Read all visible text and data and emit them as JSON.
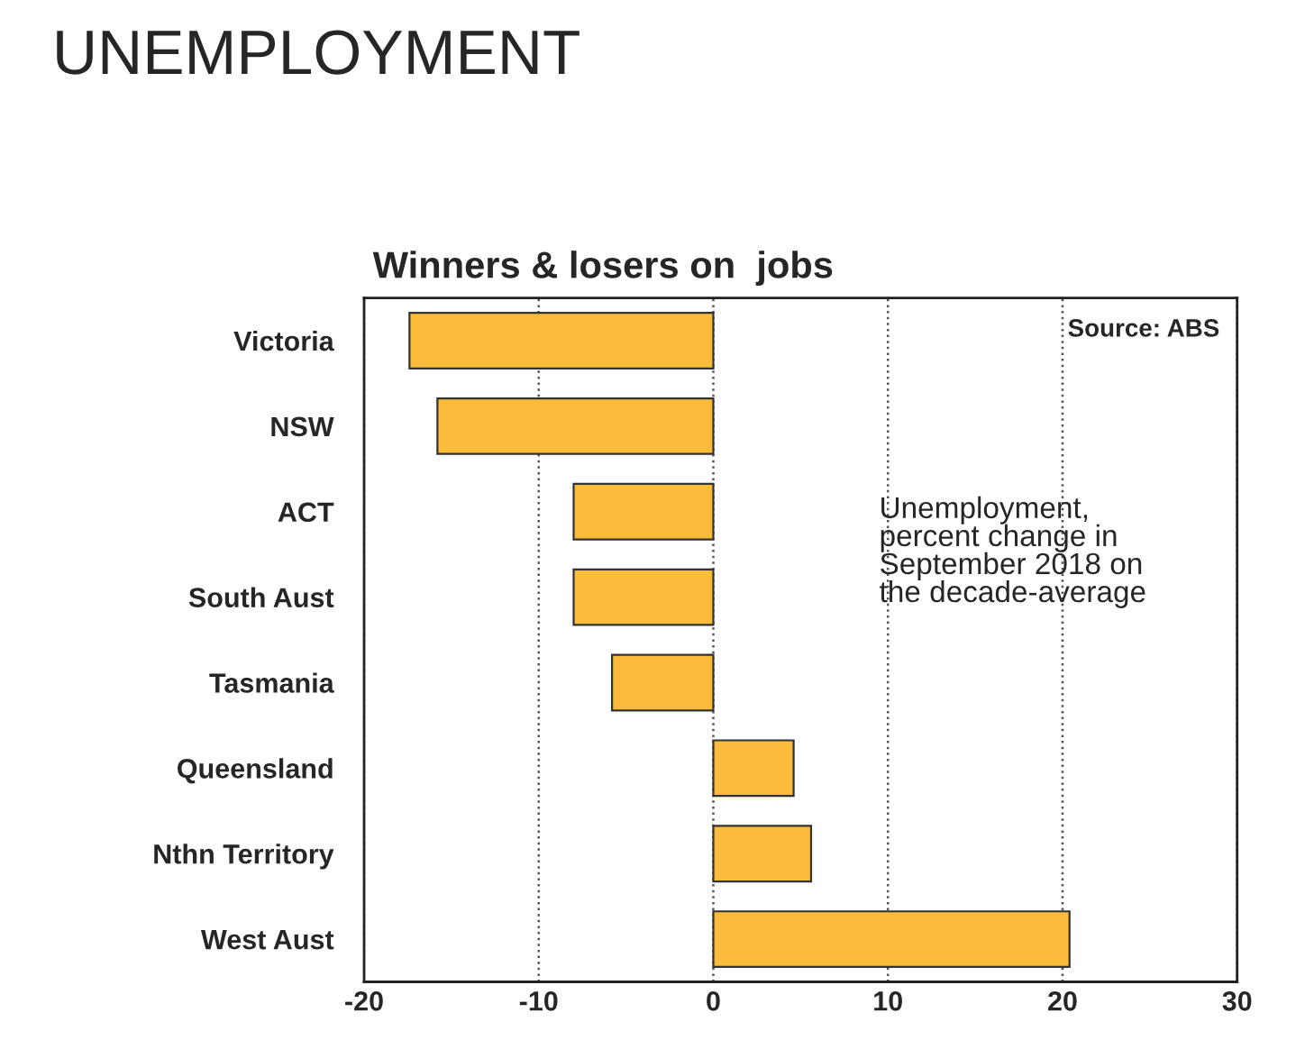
{
  "chart_data": {
    "type": "bar",
    "orientation": "horizontal",
    "title": "UNEMPLOYMENT",
    "subtitle": "Winners & losers on  jobs",
    "categories": [
      "Victoria",
      "NSW",
      "ACT",
      "South Aust",
      "Tasmania",
      "Queensland",
      "Nthn Territory",
      "West Aust"
    ],
    "values": [
      -17.4,
      -15.8,
      -8.0,
      -8.0,
      -5.8,
      4.6,
      5.6,
      20.4
    ],
    "color": "#fbbc3c",
    "xlim": [
      -20,
      30
    ],
    "xticks": [
      -20,
      -10,
      0,
      10,
      20,
      30
    ],
    "grid": "x",
    "annotations": [
      "Source: ABS",
      "Unemployment,\npercent change in\nSeptember 2018 on\nthe decade-average"
    ]
  }
}
